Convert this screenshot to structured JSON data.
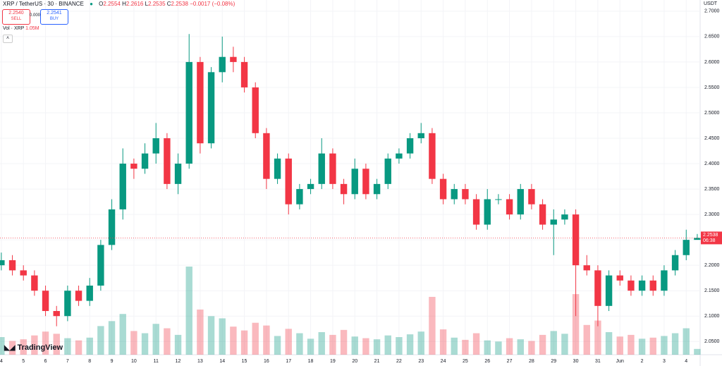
{
  "header": {
    "symbol": "XRP / TetherUS · 30 · BINANCE",
    "ohlc": [
      {
        "label": "O",
        "value": "2.2554"
      },
      {
        "label": "H",
        "value": "2.2616"
      },
      {
        "label": "L",
        "value": "2.2535"
      },
      {
        "label": "C",
        "value": "2.2538"
      }
    ],
    "change": "−0.0017 (−0.08%)",
    "sell_price": "2.2540",
    "sell_label": "SELL",
    "spread": "0.0001",
    "buy_price": "2.2541",
    "buy_label": "BUY",
    "volume_title": "Vol · XRP",
    "volume_value": "1.05M",
    "currency": "USDT"
  },
  "chart_data": {
    "type": "candlestick",
    "x": [
      0,
      0.5,
      1,
      1.5,
      2,
      2.5,
      3,
      3.5,
      4,
      4.5,
      5,
      5.5,
      6,
      6.5,
      7,
      7.5,
      8,
      8.5,
      9,
      9.5,
      10,
      10.5,
      11,
      11.5,
      12,
      12.5,
      13,
      13.5,
      14,
      14.5,
      15,
      15.5,
      16,
      16.5,
      17,
      17.5,
      18,
      18.5,
      19,
      19.5,
      20,
      20.5,
      21,
      21.5,
      22,
      22.5,
      23,
      23.5,
      24,
      24.5,
      25,
      25.5,
      26,
      26.5,
      27,
      27.5,
      28,
      28.5,
      29,
      29.5,
      30,
      30.5,
      31,
      31.5
    ],
    "open": [
      2.2,
      2.21,
      2.19,
      2.18,
      2.15,
      2.11,
      2.1,
      2.15,
      2.13,
      2.16,
      2.24,
      2.31,
      2.4,
      2.39,
      2.42,
      2.45,
      2.36,
      2.4,
      2.6,
      2.44,
      2.58,
      2.61,
      2.6,
      2.55,
      2.46,
      2.37,
      2.41,
      2.32,
      2.35,
      2.36,
      2.42,
      2.36,
      2.34,
      2.39,
      2.34,
      2.36,
      2.41,
      2.42,
      2.45,
      2.46,
      2.37,
      2.33,
      2.35,
      2.33,
      2.28,
      2.33,
      2.33,
      2.3,
      2.35,
      2.32,
      2.28,
      2.29,
      2.3,
      2.2,
      2.19,
      2.12,
      2.18,
      2.17,
      2.15,
      2.17,
      2.15,
      2.19,
      2.22,
      2.25
    ],
    "high": [
      2.225,
      2.22,
      2.2,
      2.19,
      2.16,
      2.12,
      2.16,
      2.16,
      2.175,
      2.25,
      2.33,
      2.43,
      2.41,
      2.44,
      2.48,
      2.46,
      2.42,
      2.655,
      2.61,
      2.59,
      2.65,
      2.63,
      2.61,
      2.56,
      2.47,
      2.42,
      2.42,
      2.36,
      2.37,
      2.45,
      2.43,
      2.37,
      2.41,
      2.4,
      2.37,
      2.42,
      2.43,
      2.46,
      2.48,
      2.47,
      2.38,
      2.36,
      2.36,
      2.34,
      2.35,
      2.34,
      2.34,
      2.36,
      2.36,
      2.33,
      2.31,
      2.31,
      2.31,
      2.22,
      2.2,
      2.19,
      2.19,
      2.18,
      2.18,
      2.18,
      2.2,
      2.23,
      2.27,
      2.2616
    ],
    "low": [
      2.19,
      2.18,
      2.17,
      2.14,
      2.1,
      2.08,
      2.09,
      2.12,
      2.12,
      2.15,
      2.23,
      2.29,
      2.37,
      2.38,
      2.4,
      2.35,
      2.34,
      2.39,
      2.42,
      2.43,
      2.56,
      2.58,
      2.54,
      2.45,
      2.35,
      2.36,
      2.3,
      2.31,
      2.34,
      2.35,
      2.35,
      2.32,
      2.33,
      2.33,
      2.33,
      2.35,
      2.4,
      2.41,
      2.44,
      2.36,
      2.32,
      2.32,
      2.32,
      2.27,
      2.27,
      2.32,
      2.29,
      2.29,
      2.31,
      2.27,
      2.22,
      2.28,
      2.1,
      2.18,
      2.08,
      2.11,
      2.16,
      2.14,
      2.14,
      2.14,
      2.14,
      2.18,
      2.21,
      2.2535
    ],
    "close": [
      2.21,
      2.19,
      2.18,
      2.15,
      2.11,
      2.1,
      2.15,
      2.13,
      2.16,
      2.24,
      2.31,
      2.4,
      2.39,
      2.42,
      2.45,
      2.36,
      2.4,
      2.6,
      2.44,
      2.58,
      2.61,
      2.6,
      2.55,
      2.46,
      2.37,
      2.41,
      2.32,
      2.35,
      2.36,
      2.42,
      2.36,
      2.34,
      2.39,
      2.34,
      2.36,
      2.41,
      2.42,
      2.45,
      2.46,
      2.37,
      2.33,
      2.35,
      2.33,
      2.28,
      2.33,
      2.33,
      2.3,
      2.35,
      2.32,
      2.28,
      2.29,
      2.3,
      2.2,
      2.19,
      2.12,
      2.18,
      2.17,
      2.15,
      2.17,
      2.15,
      2.19,
      2.22,
      2.25,
      2.2538
    ],
    "volume": [
      3200000,
      2500000,
      2800000,
      3500000,
      4200000,
      3800000,
      3000000,
      2600000,
      3100000,
      5200000,
      6100000,
      7400000,
      4300000,
      3900000,
      5600000,
      4800000,
      3600000,
      16000000,
      8200000,
      7000000,
      6600000,
      5100000,
      4400000,
      5800000,
      5300000,
      3400000,
      4700000,
      3900000,
      2900000,
      4100000,
      3600000,
      4500000,
      3300000,
      3000000,
      2800000,
      3500000,
      3200000,
      3700000,
      4200000,
      10500000,
      4600000,
      3100000,
      2700000,
      3900000,
      2600000,
      2400000,
      3000000,
      2800000,
      2500000,
      3600000,
      4300000,
      3800000,
      11000000,
      5400000,
      6200000,
      4100000,
      3300000,
      3600000,
      2900000,
      3100000,
      3400000,
      3900000,
      4800000,
      1050000
    ],
    "xlim": [
      -0.06,
      31.63
    ],
    "xticks": [
      {
        "value": 0,
        "label": "4"
      },
      {
        "value": 1,
        "label": "5"
      },
      {
        "value": 2,
        "label": "6"
      },
      {
        "value": 3,
        "label": "7"
      },
      {
        "value": 4,
        "label": "8"
      },
      {
        "value": 5,
        "label": "9"
      },
      {
        "value": 6,
        "label": "10"
      },
      {
        "value": 7,
        "label": "11"
      },
      {
        "value": 8,
        "label": "12"
      },
      {
        "value": 9,
        "label": "13"
      },
      {
        "value": 10,
        "label": "14"
      },
      {
        "value": 11,
        "label": "15"
      },
      {
        "value": 12,
        "label": "16"
      },
      {
        "value": 13,
        "label": "17"
      },
      {
        "value": 14,
        "label": "18"
      },
      {
        "value": 15,
        "label": "19"
      },
      {
        "value": 16,
        "label": "20"
      },
      {
        "value": 17,
        "label": "21"
      },
      {
        "value": 18,
        "label": "22"
      },
      {
        "value": 19,
        "label": "23"
      },
      {
        "value": 20,
        "label": "24"
      },
      {
        "value": 21,
        "label": "25"
      },
      {
        "value": 22,
        "label": "26"
      },
      {
        "value": 23,
        "label": "27"
      },
      {
        "value": 24,
        "label": "28"
      },
      {
        "value": 25,
        "label": "29"
      },
      {
        "value": 26,
        "label": "30"
      },
      {
        "value": 27,
        "label": "31"
      },
      {
        "value": 28,
        "label": "Jun"
      },
      {
        "value": 29,
        "label": "2"
      },
      {
        "value": 30,
        "label": "3"
      },
      {
        "value": 31,
        "label": "4"
      }
    ],
    "ylim": [
      2.024,
      2.722
    ],
    "yticks": [
      {
        "value": 2.05,
        "label": "2.0500"
      },
      {
        "value": 2.1,
        "label": "2.1000"
      },
      {
        "value": 2.15,
        "label": "2.1500"
      },
      {
        "value": 2.2,
        "label": "2.2000"
      },
      {
        "value": 2.25,
        "label": "2.2500"
      },
      {
        "value": 2.3,
        "label": "2.3000"
      },
      {
        "value": 2.35,
        "label": "2.3500"
      },
      {
        "value": 2.4,
        "label": "2.4000"
      },
      {
        "value": 2.45,
        "label": "2.4500"
      },
      {
        "value": 2.5,
        "label": "2.5000"
      },
      {
        "value": 2.55,
        "label": "2.5500"
      },
      {
        "value": 2.6,
        "label": "2.6000"
      },
      {
        "value": 2.65,
        "label": "2.6500"
      },
      {
        "value": 2.7,
        "label": "2.7000"
      }
    ],
    "up_color": "#089981",
    "down_color": "#f23645",
    "last_price": 2.2538,
    "countdown": "06:38"
  },
  "branding": "TradingView"
}
